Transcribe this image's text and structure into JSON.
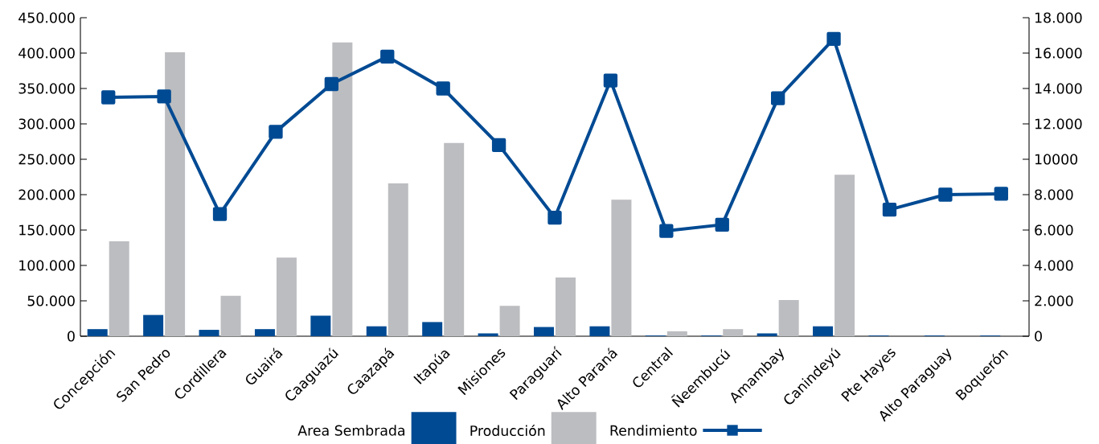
{
  "chart_data": {
    "type": "bar",
    "categories": [
      "Concepción",
      "San Pedro",
      "Cordillera",
      "Guairá",
      "Caaguazú",
      "Caazapá",
      "Itapúa",
      "Misiones",
      "Paraguarí",
      "Alto Paraná",
      "Central",
      "Ñeembucú",
      "Amambay",
      "Canindeyú",
      "Pte Hayes",
      "Alto Paraguay",
      "Boquerón"
    ],
    "series": [
      {
        "name": "Area Sembrada",
        "color": "#004a93",
        "values": [
          10000,
          30000,
          9000,
          10000,
          29000,
          14000,
          20000,
          4000,
          13000,
          14000,
          1000,
          1000,
          4000,
          14000,
          1000,
          1000,
          1000
        ]
      },
      {
        "name": "Producción",
        "color": "#bcbdc0",
        "values": [
          134000,
          401000,
          57000,
          111000,
          415000,
          216000,
          273000,
          43000,
          83000,
          193000,
          7000,
          10000,
          51000,
          228000,
          null,
          null,
          null
        ]
      },
      {
        "name": "Rendimiento",
        "type": "line",
        "axis": "y2",
        "marker": "square",
        "color": "#004a93",
        "values": [
          13500,
          13550,
          6900,
          11550,
          14250,
          15800,
          14000,
          10800,
          6700,
          14450,
          5950,
          6300,
          13450,
          16800,
          7150,
          8000,
          8050
        ]
      }
    ],
    "ylim": [
      0,
      450000
    ],
    "yticks": [
      0,
      {
        "value": 50000,
        "label": "50.000"
      },
      {
        "value": 100000,
        "label": "100.000"
      },
      {
        "value": 150000,
        "label": "150.000"
      },
      {
        "value": 200000,
        "label": "200.000"
      },
      {
        "value": 250000,
        "label": "250.000"
      },
      {
        "value": 300000,
        "label": "300.000"
      },
      {
        "value": 350000,
        "label": "350.000"
      },
      {
        "value": 400000,
        "label": "400.000"
      },
      {
        "value": 450000,
        "label": "450.000"
      }
    ],
    "y2lim": [
      0,
      18000
    ],
    "y2ticks": [
      0,
      {
        "value": 2000,
        "label": "2.000"
      },
      {
        "value": 4000,
        "label": "4.000"
      },
      {
        "value": 6000,
        "label": "6.000"
      },
      {
        "value": 8000,
        "label": "8.000"
      },
      {
        "value": 10000,
        "label": "10000"
      },
      {
        "value": 12000,
        "label": "12.000"
      },
      {
        "value": 14000,
        "label": "14.000"
      },
      {
        "value": 16000,
        "label": "16.000"
      },
      {
        "value": 18000,
        "label": "18.000"
      }
    ],
    "legend": "bottom",
    "grid": false
  }
}
